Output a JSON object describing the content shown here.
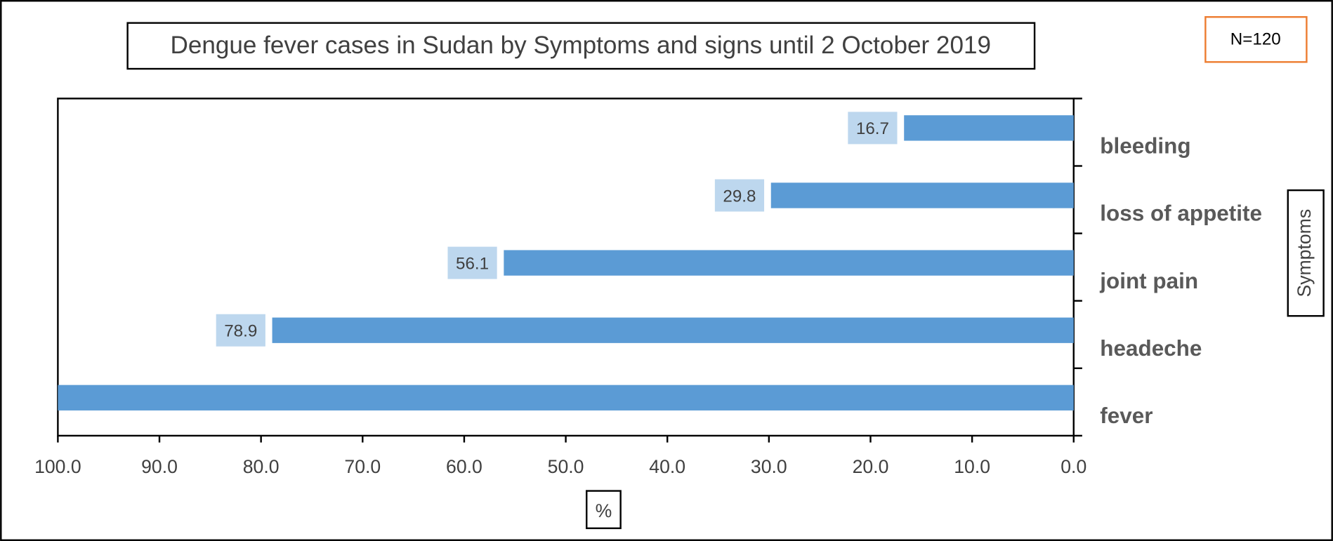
{
  "chart_data": {
    "type": "hbar",
    "title": "Dengue fever cases in Sudan by Symptoms  and signs until 2 October 2019",
    "annotation": "N=120",
    "x_label": "%",
    "y_label": "Symptoms",
    "categories": [
      "bleeding",
      "loss of appetite",
      "joint pain",
      "headeche",
      "fever"
    ],
    "values": [
      16.7,
      29.8,
      56.1,
      78.9,
      100
    ],
    "value_labels": [
      "16.7",
      "29.8",
      "56.1",
      "78.9",
      null
    ],
    "color": "#5b9bd5",
    "label_color": "#bdd7ee",
    "xlim": [
      100,
      0
    ],
    "xticks": [
      {
        "value": 100,
        "label": "100.0"
      },
      {
        "value": 90,
        "label": "90.0"
      },
      {
        "value": 80,
        "label": "80.0"
      },
      {
        "value": 70,
        "label": "70.0"
      },
      {
        "value": 60,
        "label": "60.0"
      },
      {
        "value": 50,
        "label": "50.0"
      },
      {
        "value": 40,
        "label": "40.0"
      },
      {
        "value": 30,
        "label": "30.0"
      },
      {
        "value": 20,
        "label": "20.0"
      },
      {
        "value": 10,
        "label": "10.0"
      },
      {
        "value": 0,
        "label": "0.0"
      }
    ],
    "grid": false
  }
}
